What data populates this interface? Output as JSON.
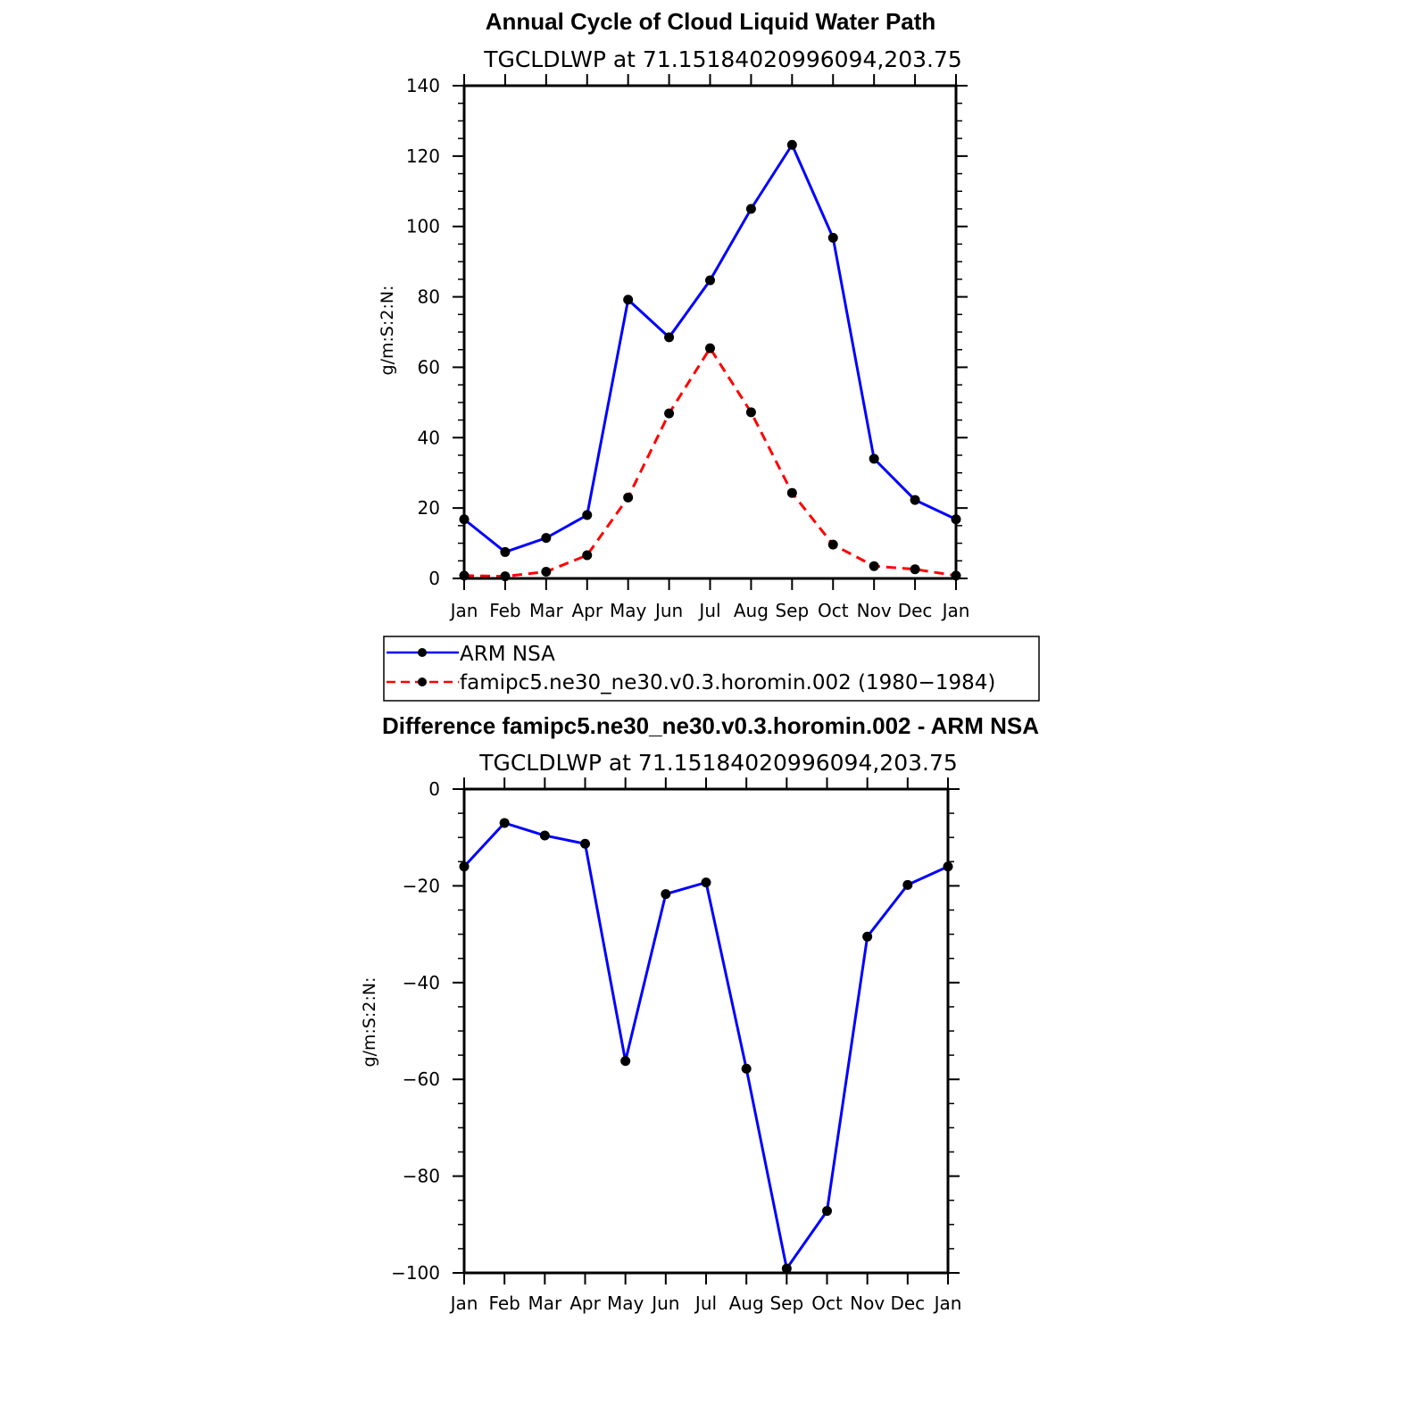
{
  "chart_data": [
    {
      "type": "line",
      "title": "Annual Cycle of Cloud Liquid Water Path",
      "subtitle": "TGCLDLWP  at  71.15184020996094,203.75",
      "ylabel": "g/m:S:2:N:",
      "xlabel": "",
      "categories": [
        "Jan",
        "Feb",
        "Mar",
        "Apr",
        "May",
        "Jun",
        "Jul",
        "Aug",
        "Sep",
        "Oct",
        "Nov",
        "Dec",
        "Jan"
      ],
      "ylim": [
        0,
        140
      ],
      "yticks": [
        0,
        20,
        40,
        60,
        80,
        100,
        120,
        140
      ],
      "series": [
        {
          "name": "ARM  NSA",
          "color": "#0000ff",
          "style": "solid",
          "values": [
            16.8,
            7.5,
            11.5,
            18,
            79.2,
            68.5,
            84.7,
            105,
            123.2,
            96.8,
            34,
            22.3,
            16.8
          ]
        },
        {
          "name": "famipc5.ne30_ne30.v0.3.horomin.002  (1980−1984)",
          "color": "#ff0000",
          "style": "dashed",
          "values": [
            0.8,
            0.6,
            1.9,
            6.6,
            23,
            46.9,
            65.4,
            47.2,
            24.3,
            9.6,
            3.5,
            2.6,
            0.8
          ]
        }
      ],
      "legend_position": "below"
    },
    {
      "type": "line",
      "title": "Difference famipc5.ne30_ne30.v0.3.horomin.002 - ARM NSA",
      "subtitle": "TGCLDLWP  at  71.15184020996094,203.75",
      "ylabel": "g/m:S:2:N:",
      "xlabel": "",
      "categories": [
        "Jan",
        "Feb",
        "Mar",
        "Apr",
        "May",
        "Jun",
        "Jul",
        "Aug",
        "Sep",
        "Oct",
        "Nov",
        "Dec",
        "Jan"
      ],
      "ylim": [
        -100,
        0
      ],
      "yticks": [
        0,
        -20,
        -40,
        -60,
        -80,
        -100
      ],
      "ytick_labels": [
        "0",
        "−20",
        "−40",
        "−60",
        "−80",
        "−100"
      ],
      "series": [
        {
          "name": "difference",
          "color": "#0000ff",
          "style": "solid",
          "values": [
            -16,
            -7,
            -9.6,
            -11.3,
            -56.2,
            -21.7,
            -19.3,
            -57.8,
            -99.1,
            -87.2,
            -30.5,
            -19.8,
            -16
          ]
        }
      ]
    }
  ]
}
